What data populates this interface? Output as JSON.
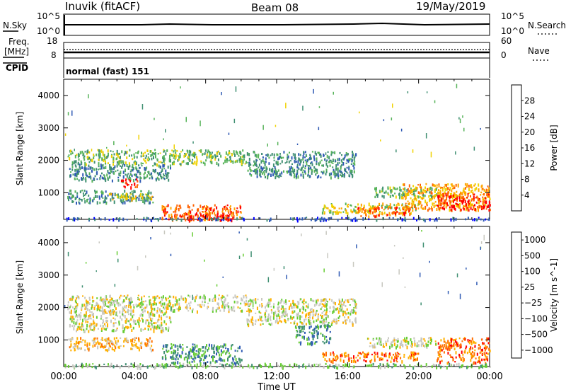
{
  "header": {
    "station": "Inuvik (fitACF)",
    "beam": "Beam 08",
    "date": "19/May/2019"
  },
  "top_panels": {
    "sky": {
      "left_label": "N.Sky",
      "left_ticks": [
        "10^5",
        "10^0"
      ],
      "right_label": "N.Search",
      "right_ticks": [
        "10^5",
        "10^0"
      ]
    },
    "freq": {
      "left_label_1": "Freq.",
      "left_label_2": "[MHz]",
      "left_ticks": [
        "18",
        "8"
      ],
      "right_label": "Nave",
      "right_ticks": [
        "60",
        "0"
      ]
    },
    "cpid": {
      "label": "CPID",
      "value": "normal (fast) 151"
    }
  },
  "chart_data": [
    {
      "type": "heatmap",
      "title": "",
      "xlabel": "Time UT",
      "ylabel": "Slant Range [km]",
      "x_ticks": [
        "00:00",
        "04:00",
        "08:00",
        "12:00",
        "16:00",
        "20:00",
        "00:00"
      ],
      "y_ticks": [
        1000,
        2000,
        3000,
        4000
      ],
      "xlim_hours": [
        0,
        24
      ],
      "ylim_km": [
        180,
        4500
      ],
      "colorbar": {
        "label": "Power [dB]",
        "ticks": [
          "4",
          "8",
          "12",
          "16",
          "20",
          "24",
          "28"
        ],
        "colors": [
          "#0000ff",
          "#2f5ab4",
          "#3f8f72",
          "#57b35a",
          "#f0d200",
          "#ffa500",
          "#ff6200",
          "#ff0000"
        ]
      },
      "regions": [
        {
          "t0": 0.2,
          "t1": 10.3,
          "r0": 1900,
          "r1": 2350,
          "level": 3
        },
        {
          "t0": 10.3,
          "t1": 16.5,
          "r0": 1500,
          "r1": 2300,
          "level": 2
        },
        {
          "t0": 0.3,
          "t1": 6.0,
          "r0": 1400,
          "r1": 1900,
          "level": 2
        },
        {
          "t0": 3.2,
          "t1": 4.3,
          "r0": 1200,
          "r1": 1450,
          "level": 7
        },
        {
          "t0": 0.2,
          "t1": 5.0,
          "r0": 700,
          "r1": 1100,
          "level": 2
        },
        {
          "t0": 2.5,
          "t1": 5.0,
          "r0": 800,
          "r1": 1000,
          "level": 4
        },
        {
          "t0": 5.5,
          "t1": 10.0,
          "r0": 180,
          "r1": 650,
          "level": 6
        },
        {
          "t0": 6.5,
          "t1": 9.5,
          "r0": 180,
          "r1": 400,
          "level": 7
        },
        {
          "t0": 14.5,
          "t1": 20.0,
          "r0": 400,
          "r1": 700,
          "level": 4
        },
        {
          "t0": 16.5,
          "t1": 19.5,
          "r0": 300,
          "r1": 600,
          "level": 6
        },
        {
          "t0": 19.0,
          "t1": 24.0,
          "r0": 500,
          "r1": 1300,
          "level": 5
        },
        {
          "t0": 21.0,
          "t1": 24.0,
          "r0": 500,
          "r1": 1000,
          "level": 7
        },
        {
          "t0": 17.5,
          "t1": 21.0,
          "r0": 900,
          "r1": 1200,
          "level": 3
        },
        {
          "t0": 0.0,
          "t1": 24.0,
          "r0": 180,
          "r1": 260,
          "level": 1
        }
      ]
    },
    {
      "type": "heatmap",
      "title": "",
      "xlabel": "Time UT",
      "ylabel": "Slant Range [km]",
      "x_ticks": [
        "00:00",
        "04:00",
        "08:00",
        "12:00",
        "16:00",
        "20:00",
        "00:00"
      ],
      "y_ticks": [
        1000,
        2000,
        3000,
        4000
      ],
      "xlim_hours": [
        0,
        24
      ],
      "ylim_km": [
        180,
        4500
      ],
      "colorbar": {
        "label": "Velocity [m s^-1]",
        "ticks": [
          "1000",
          "500",
          "100",
          "25",
          "−25",
          "−100",
          "−500",
          "−1000"
        ],
        "colors": [
          "#1f3fc0",
          "#2f5ab4",
          "#3f8f72",
          "#66cc33",
          "#c8c8c0",
          "#ffb000",
          "#ff7000",
          "#ff0000"
        ]
      },
      "regions": [
        {
          "t0": 0.2,
          "t1": 10.3,
          "r0": 1900,
          "r1": 2400,
          "level": 4
        },
        {
          "t0": 10.3,
          "t1": 16.5,
          "r0": 1500,
          "r1": 2300,
          "level": 4
        },
        {
          "t0": 0.3,
          "t1": 6.0,
          "r0": 1300,
          "r1": 1900,
          "level": 4
        },
        {
          "t0": 0.2,
          "t1": 5.0,
          "r0": 700,
          "r1": 1100,
          "level": 5
        },
        {
          "t0": 5.5,
          "t1": 10.0,
          "r0": 300,
          "r1": 900,
          "level": 2
        },
        {
          "t0": 13.0,
          "t1": 15.0,
          "r0": 900,
          "r1": 1500,
          "level": 2
        },
        {
          "t0": 14.5,
          "t1": 20.0,
          "r0": 350,
          "r1": 650,
          "level": 6
        },
        {
          "t0": 17.0,
          "t1": 21.0,
          "r0": 800,
          "r1": 1100,
          "level": 4
        },
        {
          "t0": 21.0,
          "t1": 24.0,
          "r0": 300,
          "r1": 1100,
          "level": 6
        },
        {
          "t0": 0.0,
          "t1": 24.0,
          "r0": 180,
          "r1": 300,
          "level": 3
        }
      ]
    }
  ]
}
